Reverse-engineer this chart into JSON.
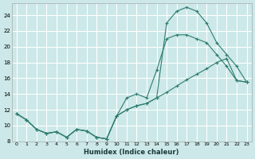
{
  "xlabel": "Humidex (Indice chaleur)",
  "bg_color": "#cce8e8",
  "grid_color": "#ffffff",
  "line_color": "#2e7d6e",
  "xlim": [
    -0.5,
    23.5
  ],
  "ylim": [
    8,
    25.5
  ],
  "xticks": [
    0,
    1,
    2,
    3,
    4,
    5,
    6,
    7,
    8,
    9,
    10,
    11,
    12,
    13,
    14,
    15,
    16,
    17,
    18,
    19,
    20,
    21,
    22,
    23
  ],
  "yticks": [
    8,
    10,
    12,
    14,
    16,
    18,
    20,
    22,
    24
  ],
  "series1_x": [
    0,
    1,
    2,
    3,
    4,
    5,
    6,
    7,
    8,
    9,
    10,
    11,
    12,
    13,
    14,
    15,
    16,
    17,
    18,
    19,
    20,
    21,
    22,
    23
  ],
  "series1_y": [
    11.5,
    10.7,
    9.5,
    9.0,
    9.2,
    8.5,
    9.5,
    9.3,
    8.5,
    8.3,
    11.2,
    13.5,
    14.0,
    13.5,
    17.0,
    21.0,
    21.5,
    21.5,
    21.0,
    20.5,
    19.0,
    17.5,
    15.7,
    15.5
  ],
  "series2_x": [
    0,
    1,
    2,
    3,
    4,
    5,
    6,
    7,
    8,
    9,
    10,
    11,
    12,
    13,
    14,
    15,
    16,
    17,
    18,
    19,
    20,
    21,
    22,
    23
  ],
  "series2_y": [
    11.5,
    10.7,
    9.5,
    9.0,
    9.2,
    8.5,
    9.5,
    9.3,
    8.5,
    8.3,
    11.2,
    12.0,
    12.5,
    12.8,
    13.5,
    14.2,
    15.0,
    15.8,
    16.5,
    17.2,
    18.0,
    18.5,
    15.7,
    15.5
  ],
  "series3_x": [
    0,
    1,
    2,
    3,
    4,
    5,
    6,
    7,
    8,
    9,
    10,
    11,
    12,
    13,
    14,
    15,
    16,
    17,
    18,
    19,
    20,
    21,
    22,
    23
  ],
  "series3_y": [
    11.5,
    10.7,
    9.5,
    9.0,
    9.2,
    8.5,
    9.5,
    9.3,
    8.5,
    8.3,
    11.2,
    12.0,
    12.5,
    12.8,
    13.5,
    23.0,
    24.5,
    25.0,
    24.5,
    23.0,
    20.5,
    19.0,
    17.5,
    15.5
  ]
}
